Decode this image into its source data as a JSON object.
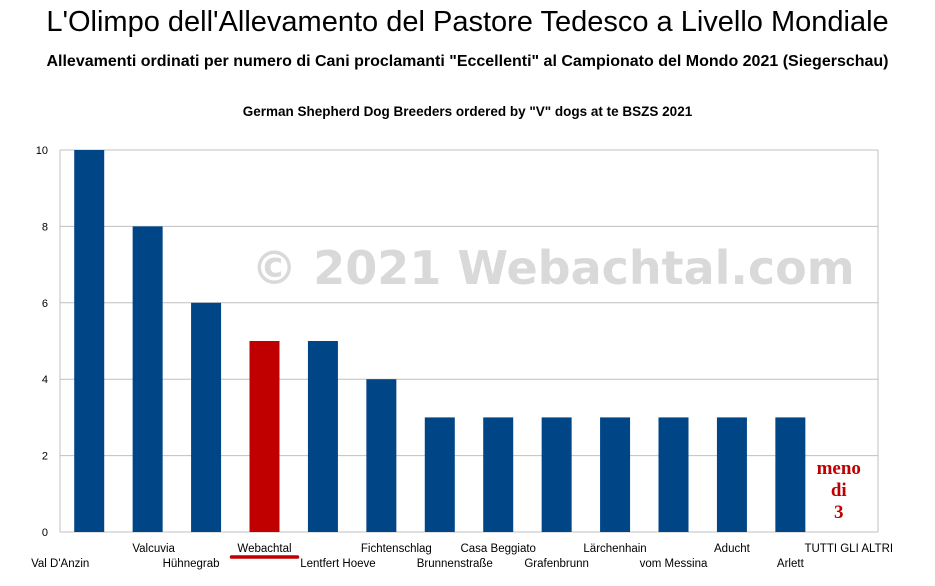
{
  "title": "L'Olimpo dell'Allevamento del Pastore Tedesco a Livello Mondiale",
  "subtitle": "Allevamenti ordinati per numero di Cani proclamanti \"Eccellenti\" al Campionato del Mondo 2021 (Siegerschau)",
  "watermark": "© 2021 Webachtal.com",
  "colors": {
    "bar": "#004586",
    "highlight": "#c00000",
    "annotation": "#c00000",
    "grid": "#c0c0c0",
    "watermark": "#d9d9d9"
  },
  "chart_data": {
    "type": "bar",
    "title": "German Shepherd Dog Breeders ordered by \"V\" dogs at te BSZS 2021",
    "xlabel": "",
    "ylabel": "",
    "ylim": [
      0,
      10
    ],
    "yticks": [
      "0",
      "2",
      "4",
      "6",
      "8",
      "10"
    ],
    "grid": true,
    "categories": [
      "Val D'Anzin",
      "Valcuvia",
      "Hühnegrab",
      "Webachtal",
      "Lentfert Hoeve",
      "Fichtenschlag",
      "Brunnenstraße",
      "Casa Beggiato",
      "Grafenbrunn",
      "Lärchenhain",
      "vom Messina",
      "Aducht",
      "Arlett",
      "TUTTI GLI ALTRI"
    ],
    "values": [
      10,
      8,
      6,
      5,
      5,
      4,
      3,
      3,
      3,
      3,
      3,
      3,
      3,
      null
    ],
    "highlighted_category": "Webachtal",
    "annotation": [
      "meno",
      "di",
      "3"
    ]
  }
}
